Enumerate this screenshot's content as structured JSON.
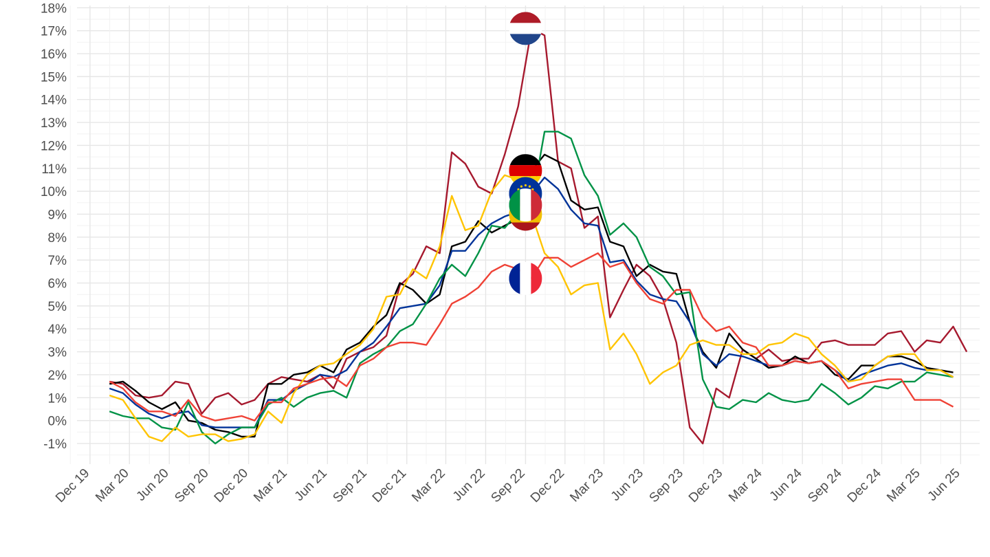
{
  "chart_data": {
    "type": "line",
    "title": "",
    "xlabel": "",
    "ylabel": "",
    "grid": true,
    "legend": "none (flag icons mark each series at Sep 22)",
    "ylim": [
      -1.9,
      18.1
    ],
    "xlim": [
      "2019-11-01",
      "2025-07-15"
    ],
    "y_ticks": [
      -1,
      0,
      1,
      2,
      3,
      4,
      5,
      6,
      7,
      8,
      9,
      10,
      11,
      12,
      13,
      14,
      15,
      16,
      17,
      18
    ],
    "y_tick_labels": [
      "-1%",
      "0%",
      "1%",
      "2%",
      "3%",
      "4%",
      "5%",
      "6%",
      "7%",
      "8%",
      "9%",
      "10%",
      "11%",
      "12%",
      "13%",
      "14%",
      "15%",
      "16%",
      "17%",
      "18%"
    ],
    "x_ticks": [
      "2019-12-01",
      "2020-03-01",
      "2020-06-01",
      "2020-09-01",
      "2020-12-01",
      "2021-03-01",
      "2021-06-01",
      "2021-09-01",
      "2021-12-01",
      "2022-03-01",
      "2022-06-01",
      "2022-09-01",
      "2022-12-01",
      "2023-03-01",
      "2023-06-01",
      "2023-09-01",
      "2023-12-01",
      "2024-03-01",
      "2024-06-01",
      "2024-09-01",
      "2024-12-01",
      "2025-03-01",
      "2025-06-01"
    ],
    "x_tick_labels": [
      "Dec 19",
      "Mar 20",
      "Jun 20",
      "Sep 20",
      "Dec 20",
      "Mar 21",
      "Jun 21",
      "Sep 21",
      "Dec 21",
      "Mar 22",
      "Jun 22",
      "Sep 22",
      "Dec 22",
      "Mar 23",
      "Jun 23",
      "Sep 23",
      "Dec 23",
      "Mar 24",
      "Jun 24",
      "Sep 24",
      "Dec 24",
      "Mar 25",
      "Jun 25"
    ],
    "start_month": "2020-01",
    "series": [
      {
        "color": "#A6192E",
        "flag": "netherlands-flag-icon",
        "values": [
          1.7,
          1.6,
          1.1,
          1.0,
          1.1,
          1.7,
          1.6,
          0.3,
          1.0,
          1.2,
          0.7,
          0.9,
          1.6,
          1.9,
          1.8,
          1.7,
          2.0,
          1.4,
          2.7,
          3.0,
          3.2,
          3.7,
          5.9,
          6.4,
          7.6,
          7.3,
          11.7,
          11.2,
          10.2,
          9.9,
          11.6,
          13.7,
          17.1,
          16.8,
          11.3,
          11.0,
          8.4,
          8.9,
          4.5,
          5.7,
          6.8,
          6.3,
          5.3,
          3.4,
          -0.3,
          -1.0,
          1.4,
          1.0,
          3.1,
          2.7,
          3.1,
          2.6,
          2.7,
          2.7,
          3.4,
          3.5,
          3.3,
          3.3,
          3.3,
          3.8,
          3.9,
          3.0,
          3.5,
          3.4,
          4.1,
          3.0
        ]
      },
      {
        "color": "#000000",
        "flag": "germany-flag-icon",
        "values": [
          1.6,
          1.7,
          1.3,
          0.8,
          0.5,
          0.8,
          0.0,
          -0.1,
          -0.4,
          -0.5,
          -0.7,
          -0.7,
          1.6,
          1.6,
          2.0,
          2.1,
          2.4,
          2.1,
          3.1,
          3.4,
          4.1,
          4.6,
          6.0,
          5.7,
          5.1,
          5.5,
          7.6,
          7.8,
          8.7,
          8.2,
          8.5,
          8.8,
          10.9,
          11.6,
          11.3,
          9.6,
          9.2,
          9.3,
          7.8,
          7.6,
          6.3,
          6.8,
          6.5,
          6.4,
          4.3,
          3.0,
          2.3,
          3.8,
          3.1,
          2.7,
          2.3,
          2.4,
          2.8,
          2.5,
          2.6,
          2.0,
          1.8,
          2.4,
          2.4,
          2.8,
          2.8,
          2.6,
          2.3,
          2.2,
          2.1
        ]
      },
      {
        "color": "#003399",
        "flag": "eu-flag-icon",
        "values": [
          1.4,
          1.2,
          0.7,
          0.3,
          0.1,
          0.3,
          0.4,
          -0.2,
          -0.3,
          -0.3,
          -0.3,
          -0.3,
          0.9,
          0.9,
          1.3,
          1.6,
          2.0,
          1.9,
          2.2,
          3.0,
          3.4,
          4.1,
          4.9,
          5.0,
          5.1,
          5.9,
          7.4,
          7.4,
          8.1,
          8.6,
          8.9,
          9.1,
          9.9,
          10.6,
          10.1,
          9.2,
          8.6,
          8.5,
          6.9,
          7.0,
          6.1,
          5.5,
          5.3,
          5.2,
          4.3,
          2.9,
          2.4,
          2.9,
          2.8,
          2.6,
          2.4,
          2.4,
          2.6,
          2.5,
          2.6,
          2.2,
          1.7,
          2.0,
          2.2,
          2.4,
          2.5,
          2.3,
          2.2,
          2.2,
          1.9
        ]
      },
      {
        "color": "#009246",
        "flag": "italy-flag-icon",
        "values": [
          0.4,
          0.2,
          0.1,
          0.1,
          -0.3,
          -0.4,
          0.8,
          -0.5,
          -1.0,
          -0.6,
          -0.3,
          -0.3,
          0.7,
          1.0,
          0.6,
          1.0,
          1.2,
          1.3,
          1.0,
          2.5,
          2.9,
          3.2,
          3.9,
          4.2,
          5.1,
          6.2,
          6.8,
          6.3,
          7.3,
          8.5,
          8.4,
          9.1,
          9.4,
          12.6,
          12.6,
          12.3,
          10.7,
          9.8,
          8.1,
          8.6,
          8.0,
          6.7,
          6.3,
          5.5,
          5.6,
          1.8,
          0.6,
          0.5,
          0.9,
          0.8,
          1.2,
          0.9,
          0.8,
          0.9,
          1.6,
          1.2,
          0.7,
          1.0,
          1.5,
          1.4,
          1.7,
          1.7,
          2.1,
          2.0,
          1.9
        ]
      },
      {
        "color": "#FFC400",
        "flag": "spain-flag-icon",
        "values": [
          1.1,
          0.9,
          0.1,
          -0.7,
          -0.9,
          -0.3,
          -0.7,
          -0.6,
          -0.6,
          -0.9,
          -0.8,
          -0.6,
          0.4,
          -0.1,
          1.2,
          2.0,
          2.4,
          2.5,
          2.9,
          3.3,
          4.0,
          5.4,
          5.5,
          6.6,
          6.2,
          7.6,
          9.8,
          8.3,
          8.5,
          10.0,
          10.7,
          10.5,
          9.0,
          7.3,
          6.7,
          5.5,
          5.9,
          6.0,
          3.1,
          3.8,
          2.9,
          1.6,
          2.1,
          2.4,
          3.3,
          3.5,
          3.3,
          3.3,
          2.9,
          2.9,
          3.3,
          3.4,
          3.8,
          3.6,
          2.9,
          2.4,
          1.7,
          1.8,
          2.4,
          2.8,
          2.9,
          2.9,
          2.2,
          2.2,
          1.9
        ]
      },
      {
        "color": "#EF4135",
        "flag": "france-flag-icon",
        "values": [
          1.7,
          1.4,
          0.8,
          0.4,
          0.4,
          0.2,
          0.9,
          0.2,
          0.0,
          0.1,
          0.2,
          0.0,
          0.8,
          0.8,
          1.4,
          1.6,
          1.8,
          1.9,
          1.5,
          2.4,
          2.7,
          3.2,
          3.4,
          3.4,
          3.3,
          4.2,
          5.1,
          5.4,
          5.8,
          6.5,
          6.8,
          6.6,
          6.2,
          7.1,
          7.1,
          6.7,
          7.0,
          7.3,
          6.7,
          6.9,
          6.0,
          5.3,
          5.1,
          5.7,
          5.7,
          4.5,
          3.9,
          4.1,
          3.4,
          3.2,
          2.4,
          2.4,
          2.6,
          2.5,
          2.6,
          2.2,
          1.4,
          1.6,
          1.7,
          1.8,
          1.8,
          0.9,
          0.9,
          0.9,
          0.6
        ]
      }
    ],
    "markers": [
      {
        "flag": "netherlands-flag-icon",
        "x": "2022-09-01",
        "y": 17.1
      },
      {
        "flag": "germany-flag-icon",
        "x": "2022-09-01",
        "y": 10.9
      },
      {
        "flag": "eu-flag-icon",
        "x": "2022-09-01",
        "y": 9.9
      },
      {
        "flag": "spain-flag-icon",
        "x": "2022-09-01",
        "y": 9.0
      },
      {
        "flag": "italy-flag-icon",
        "x": "2022-09-01",
        "y": 9.4
      },
      {
        "flag": "france-flag-icon",
        "x": "2022-09-01",
        "y": 6.2
      }
    ]
  }
}
